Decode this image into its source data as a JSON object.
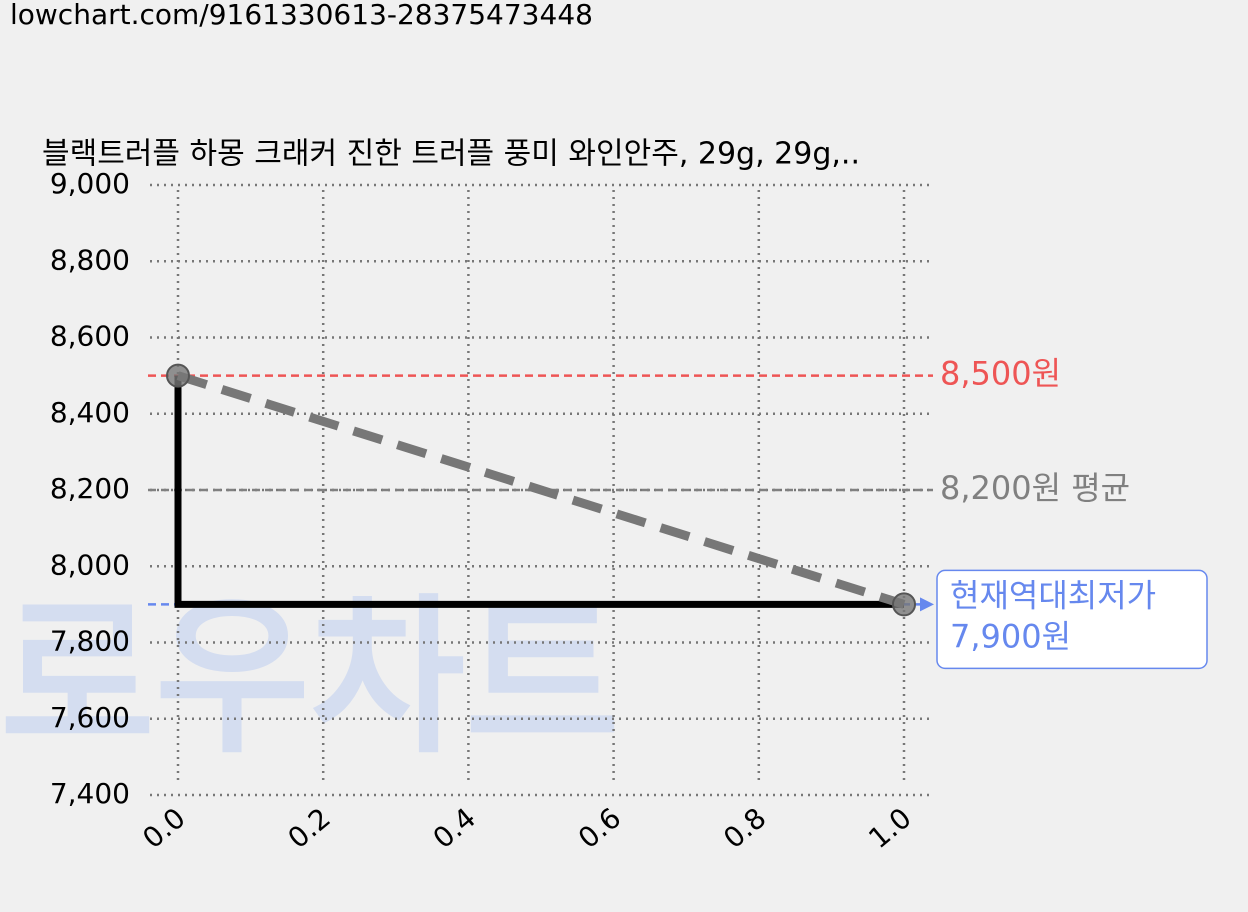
{
  "url": "lowchart.com/9161330613-28375473448",
  "chart_data": {
    "type": "line",
    "title": "블랙트러플 하몽 크래커 진한 트러플 풍미 와인안주, 29g, 29g,..",
    "watermark": "로우차트",
    "x": [
      0,
      1
    ],
    "series": [
      {
        "color": "#000000",
        "trend_color": "#777777",
        "values": [
          8500,
          7900
        ]
      }
    ],
    "xlim": [
      0,
      1
    ],
    "xticks": [
      {
        "value": 0,
        "label": "0.0"
      },
      0.2,
      0.4,
      0.6,
      0.8,
      {
        "value": 1,
        "label": "1.0"
      }
    ],
    "ylim": [
      7400,
      9000
    ],
    "yticks": [
      {
        "value": 7400,
        "label": "7,400"
      },
      {
        "value": 7600,
        "label": "7,600"
      },
      {
        "value": 7800,
        "label": "7,800"
      },
      {
        "value": 8000,
        "label": "8,000"
      },
      {
        "value": 8200,
        "label": "8,200"
      },
      {
        "value": 8400,
        "label": "8,400"
      },
      {
        "value": 8600,
        "label": "8,600"
      },
      {
        "value": 8800,
        "label": "8,800"
      },
      {
        "value": 9000,
        "label": "9,000"
      }
    ],
    "grid": true,
    "reference_lines": [
      {
        "value": 8500,
        "label": "8,500원",
        "color": "#ee5555"
      },
      {
        "value": 8200,
        "label": "8,200원 평균",
        "color": "#808080"
      },
      {
        "value": 7900,
        "text": "현재역대최저가",
        "label": "7,900원",
        "color": "#6688ee"
      }
    ]
  }
}
